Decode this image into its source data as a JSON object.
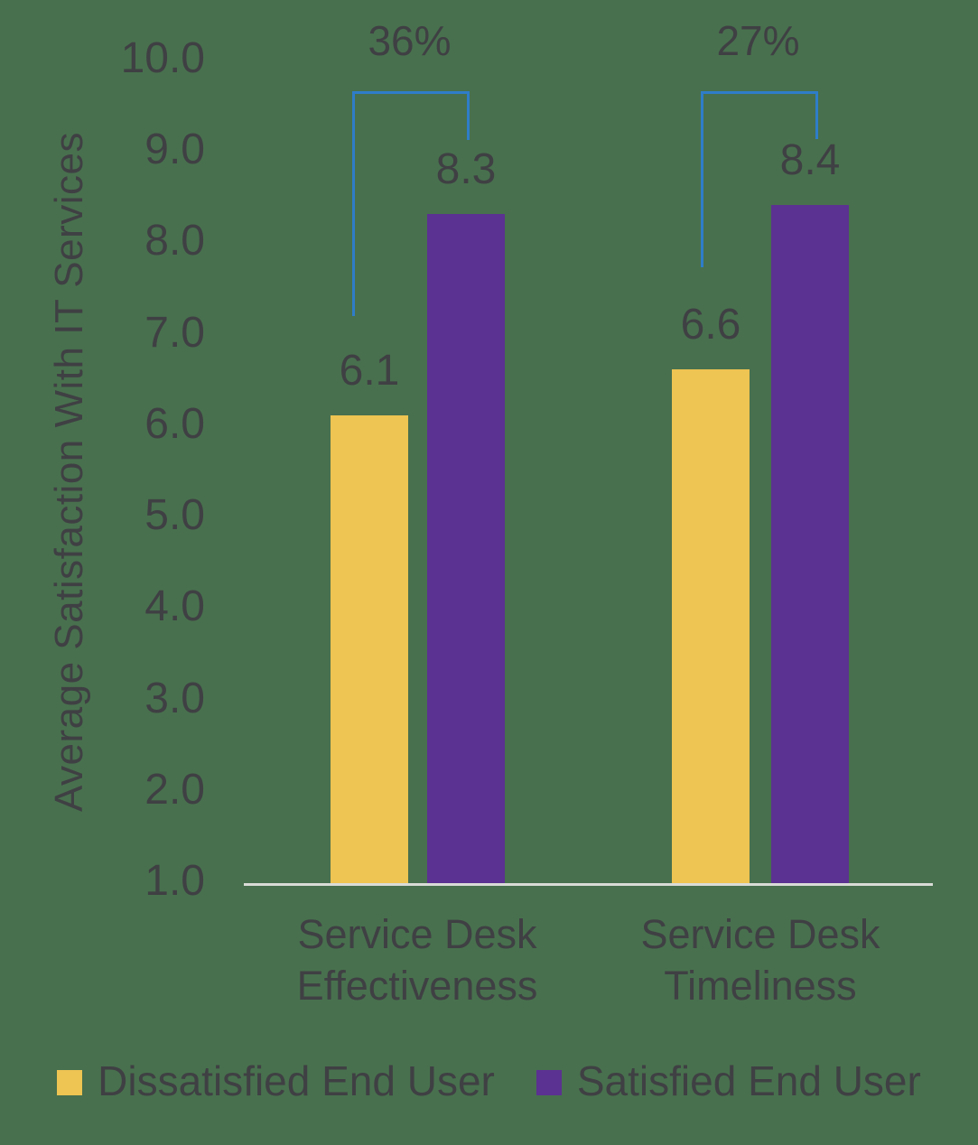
{
  "colors": {
    "background": "#48704E",
    "text": "#3F4043",
    "bracket_blue": "#2E7DC8",
    "axis_line": "#D9DCD7",
    "dissatisfied_gold": "#EEC452",
    "satisfied_purple": "#5B3191"
  },
  "chart_data": {
    "type": "bar",
    "title": "",
    "ylabel": "Average Satisfaction With IT Services",
    "xlabel": "",
    "ylim": [
      1.0,
      10.0
    ],
    "yticks": [
      "10.0",
      "9.0",
      "8.0",
      "7.0",
      "6.0",
      "5.0",
      "4.0",
      "3.0",
      "2.0",
      "1.0"
    ],
    "grid": false,
    "legend_position": "bottom",
    "categories": [
      "Service Desk Effectiveness",
      "Service Desk Timeliness"
    ],
    "series": [
      {
        "name": "Dissatisfied End User",
        "color": "#EEC452",
        "values": [
          6.1,
          6.6
        ],
        "data_labels": [
          "6.1",
          "6.6"
        ]
      },
      {
        "name": "Satisfied End User",
        "color": "#5B3191",
        "values": [
          8.3,
          8.4
        ],
        "data_labels": [
          "8.3",
          "8.4"
        ]
      }
    ],
    "annotations": [
      {
        "label": "36%",
        "group": "Service Desk Effectiveness",
        "meaning": "difference between bars"
      },
      {
        "label": "27%",
        "group": "Service Desk Timeliness",
        "meaning": "difference between bars"
      }
    ]
  },
  "legend": {
    "items": [
      {
        "label": "Dissatisfied End User",
        "color": "#EEC452"
      },
      {
        "label": "Satisfied End User",
        "color": "#5B3191"
      }
    ]
  }
}
